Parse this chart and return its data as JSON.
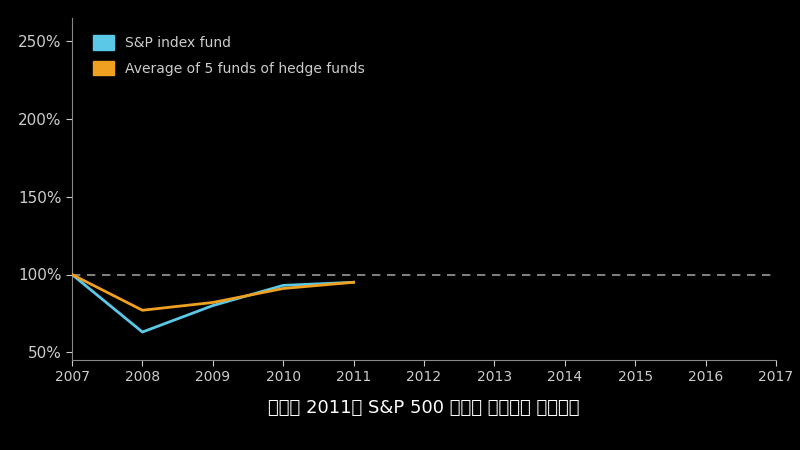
{
  "background_color": "#000000",
  "plot_bg_color": "#000000",
  "axis_color": "#888888",
  "tick_color": "#cccccc",
  "sp_color": "#5bc8e8",
  "hedge_color": "#f0a020",
  "dashed_line_color": "#999999",
  "title_text": "하지만 2011년 S&P 500 지수가 반등해서 같아졌죠",
  "title_color": "#ffffff",
  "title_fontsize": 13,
  "legend_text_color": "#cccccc",
  "years_sp": [
    2007,
    2008,
    2009,
    2010,
    2011
  ],
  "sp_values": [
    100,
    63,
    80,
    93,
    95
  ],
  "years_hedge": [
    2007,
    2008,
    2009,
    2010,
    2011
  ],
  "hedge_values": [
    100,
    77,
    82,
    91,
    95
  ],
  "ylim": [
    45,
    265
  ],
  "yticks": [
    50,
    100,
    150,
    200,
    250
  ],
  "ytick_labels": [
    "50%",
    "100%",
    "150%",
    "200%",
    "250%"
  ],
  "xticks": [
    2007,
    2008,
    2009,
    2010,
    2011,
    2012,
    2013,
    2014,
    2015,
    2016,
    2017
  ],
  "xlim": [
    2007,
    2017
  ],
  "dashed_y": 100,
  "legend_sp": "S&P index fund",
  "legend_hedge": "Average of 5 funds of hedge funds"
}
